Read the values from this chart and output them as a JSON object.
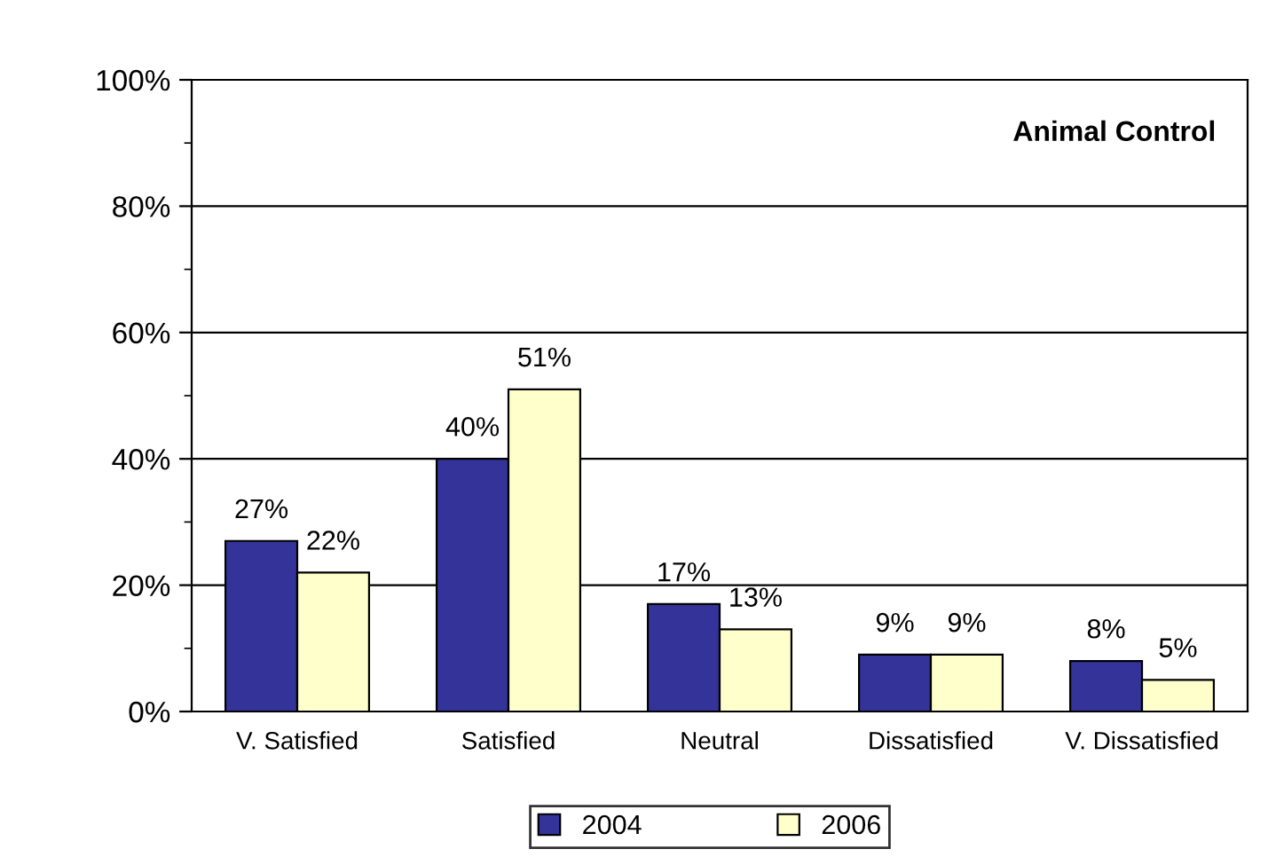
{
  "chart_data": {
    "type": "bar",
    "title": "Animal Control",
    "categories": [
      "V. Satisfied",
      "Satisfied",
      "Neutral",
      "Dissatisfied",
      "V. Dissatisfied"
    ],
    "series": [
      {
        "name": "2004",
        "color": "#333399",
        "values": [
          27,
          40,
          17,
          9,
          8
        ],
        "value_labels": [
          "27%",
          "40%",
          "17%",
          "9%",
          "8%"
        ]
      },
      {
        "name": "2006",
        "color": "#ffffcc",
        "values": [
          22,
          51,
          13,
          9,
          5
        ],
        "value_labels": [
          "22%",
          "51%",
          "13%",
          "9%",
          "5%"
        ]
      }
    ],
    "ylim": [
      0,
      100
    ],
    "yticks": [
      {
        "value": 0,
        "label": "0%"
      },
      {
        "value": 10,
        "label": null
      },
      {
        "value": 20,
        "label": "20%"
      },
      {
        "value": 30,
        "label": null
      },
      {
        "value": 40,
        "label": "40%"
      },
      {
        "value": 50,
        "label": null
      },
      {
        "value": 60,
        "label": "60%"
      },
      {
        "value": 70,
        "label": null
      },
      {
        "value": 80,
        "label": "80%"
      },
      {
        "value": 90,
        "label": null
      },
      {
        "value": 100,
        "label": "100%"
      }
    ],
    "grid": "y",
    "legend": "bottom"
  }
}
